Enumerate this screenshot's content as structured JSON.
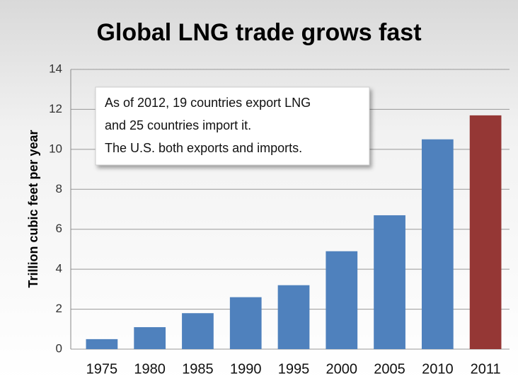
{
  "chart_data": {
    "type": "bar",
    "title": "Global LNG trade grows fast",
    "y_label": "Trillion cubic feet per year",
    "categories": [
      "1975",
      "1980",
      "1985",
      "1990",
      "1995",
      "2000",
      "2005",
      "2010",
      "2011"
    ],
    "values": [
      0.5,
      1.1,
      1.8,
      2.6,
      3.2,
      4.9,
      6.7,
      10.5,
      11.7
    ],
    "colors": [
      "#4f81bd",
      "#4f81bd",
      "#4f81bd",
      "#4f81bd",
      "#4f81bd",
      "#4f81bd",
      "#4f81bd",
      "#4f81bd",
      "#953735"
    ],
    "ylim": [
      0,
      14
    ],
    "yticks": [
      0,
      2,
      4,
      6,
      8,
      10,
      12,
      14
    ],
    "grid": true,
    "annotation": [
      "As of 2012, 19 countries export LNG",
      "and 25 countries import it.",
      "The U.S. both exports and imports."
    ]
  }
}
